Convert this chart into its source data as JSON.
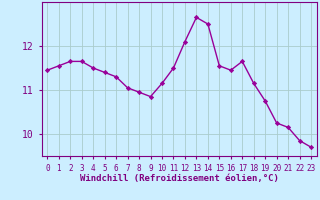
{
  "x": [
    0,
    1,
    2,
    3,
    4,
    5,
    6,
    7,
    8,
    9,
    10,
    11,
    12,
    13,
    14,
    15,
    16,
    17,
    18,
    19,
    20,
    21,
    22,
    23
  ],
  "y": [
    11.45,
    11.55,
    11.65,
    11.65,
    11.5,
    11.4,
    11.3,
    11.05,
    10.95,
    10.85,
    11.15,
    11.5,
    12.1,
    12.65,
    12.5,
    11.55,
    11.45,
    11.65,
    11.15,
    10.75,
    10.25,
    10.15,
    9.85,
    9.7
  ],
  "line_color": "#990099",
  "marker": "D",
  "marker_size": 2.2,
  "bg_color": "#cceeff",
  "grid_color": "#aacccc",
  "xlabel": "Windchill (Refroidissement éolien,°C)",
  "ylim": [
    9.5,
    13.0
  ],
  "xlim": [
    -0.5,
    23.5
  ],
  "yticks": [
    10,
    11,
    12
  ],
  "xticks": [
    0,
    1,
    2,
    3,
    4,
    5,
    6,
    7,
    8,
    9,
    10,
    11,
    12,
    13,
    14,
    15,
    16,
    17,
    18,
    19,
    20,
    21,
    22,
    23
  ],
  "line_width": 1.0,
  "font_color": "#800080",
  "tick_fontsize": 5.5,
  "ytick_fontsize": 7.0,
  "xlabel_fontsize": 6.5
}
